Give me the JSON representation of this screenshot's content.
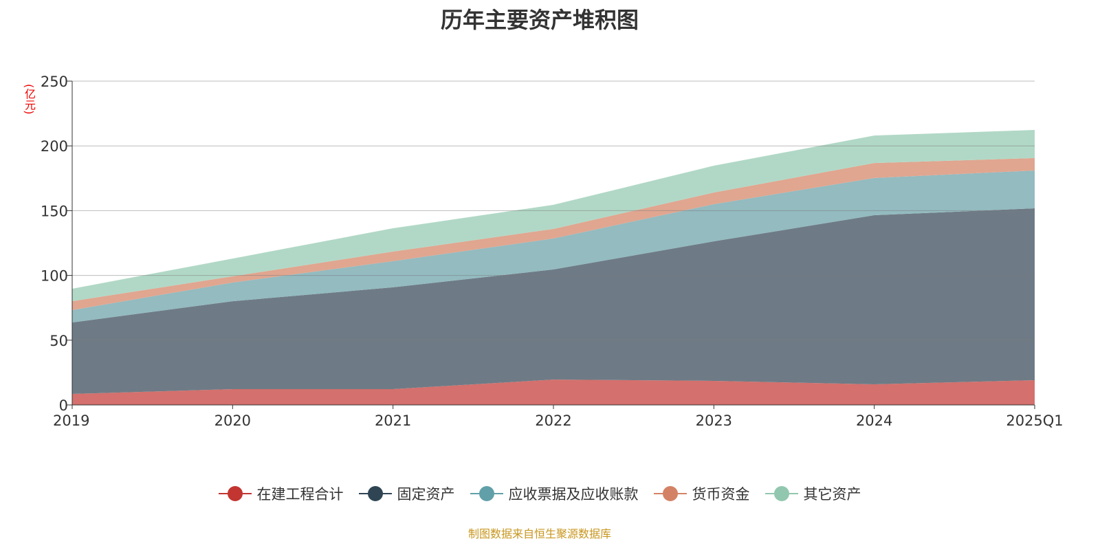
{
  "chart_data": {
    "type": "area",
    "stacked": true,
    "title": "历年主要资产堆积图",
    "ylabel": "(亿元)",
    "xlabel": "",
    "ylim": [
      0,
      250
    ],
    "yticks": [
      0,
      50,
      100,
      150,
      200,
      250
    ],
    "grid": true,
    "legend_position": "bottom",
    "categories": [
      "2019",
      "2020",
      "2021",
      "2022",
      "2023",
      "2024",
      "2025Q1"
    ],
    "series": [
      {
        "name": "在建工程合计",
        "color": "#d4706d",
        "legend_color": "#c23531",
        "values": [
          8.5,
          12.2,
          12.2,
          19.6,
          18.6,
          15.9,
          19.1
        ]
      },
      {
        "name": "固定资产",
        "color": "#6e7b86",
        "legend_color": "#2f4554",
        "values": [
          55.2,
          67.9,
          78.6,
          85.0,
          107.7,
          130.6,
          132.7
        ]
      },
      {
        "name": "应收票据及应收账款",
        "color": "#93bbc0",
        "legend_color": "#61a0a8",
        "values": [
          9.5,
          14.4,
          20.2,
          23.9,
          28.7,
          28.7,
          29.2
        ]
      },
      {
        "name": "货币资金",
        "color": "#e0a690",
        "legend_color": "#d48265",
        "values": [
          6.9,
          4.8,
          7.4,
          7.4,
          9.0,
          11.6,
          9.6
        ]
      },
      {
        "name": "其它资产",
        "color": "#b1d8c6",
        "legend_color": "#91c7ae",
        "values": [
          9.6,
          13.7,
          18.0,
          18.6,
          20.7,
          21.2,
          21.7
        ]
      }
    ]
  },
  "footer": "制图数据来自恒生聚源数据库"
}
